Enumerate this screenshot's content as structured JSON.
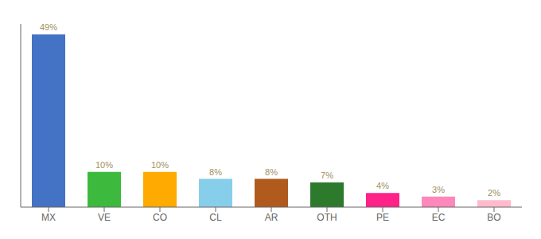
{
  "chart_data": {
    "type": "bar",
    "categories": [
      "MX",
      "VE",
      "CO",
      "CL",
      "AR",
      "OTH",
      "PE",
      "EC",
      "BO"
    ],
    "values": [
      49,
      10,
      10,
      8,
      8,
      7,
      4,
      3,
      2
    ],
    "value_labels": [
      "49%",
      "10%",
      "10%",
      "8%",
      "8%",
      "7%",
      "4%",
      "3%",
      "2%"
    ],
    "data_labels": true,
    "colors": [
      "#4472c4",
      "#3dba3d",
      "#ffaa00",
      "#87ceeb",
      "#b05a1e",
      "#2d7a2d",
      "#ff2288",
      "#ff88bb",
      "#ffbbcc"
    ],
    "ylim": [
      0,
      52
    ],
    "tick_labels": "x",
    "grid": false
  }
}
